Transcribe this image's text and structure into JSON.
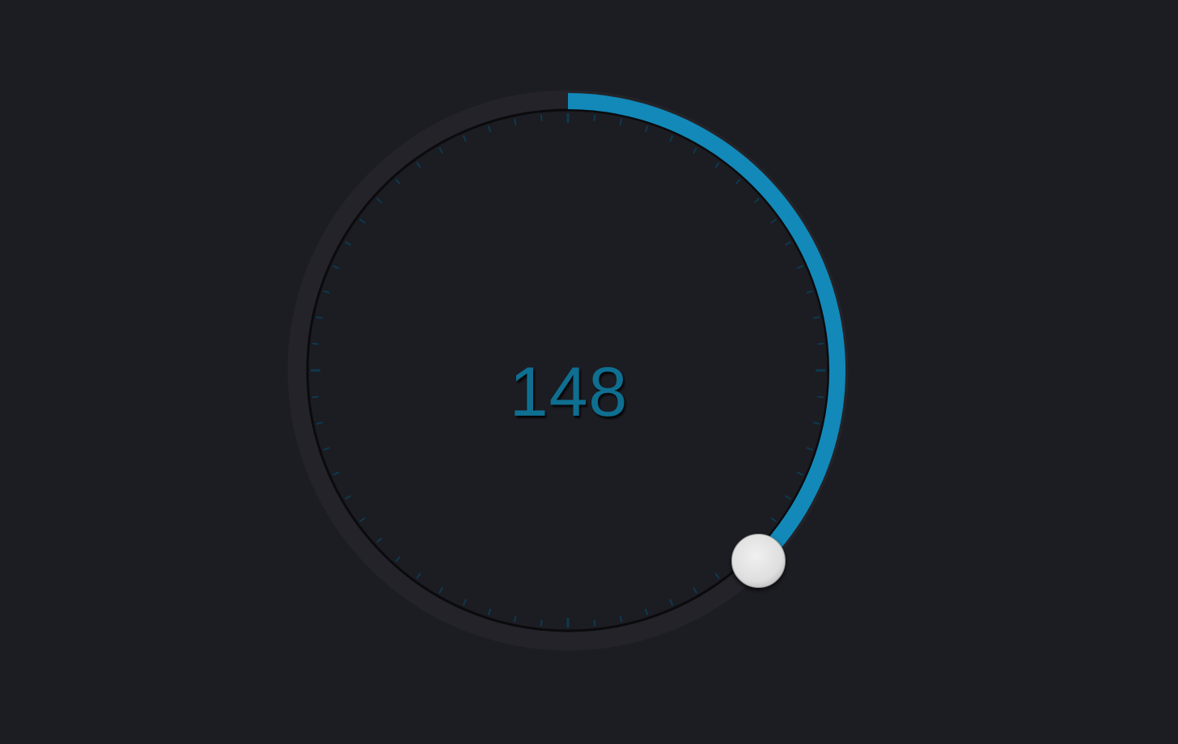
{
  "dial": {
    "value_label": "148",
    "value": 148,
    "fraction": 0.375
  },
  "colors": {
    "background": "#1c1c23",
    "track": "#232329",
    "accent": "#1289b8",
    "value_text": "#0e6f91",
    "tick": "#0d3a4d",
    "knob": "#e6e6e6"
  }
}
